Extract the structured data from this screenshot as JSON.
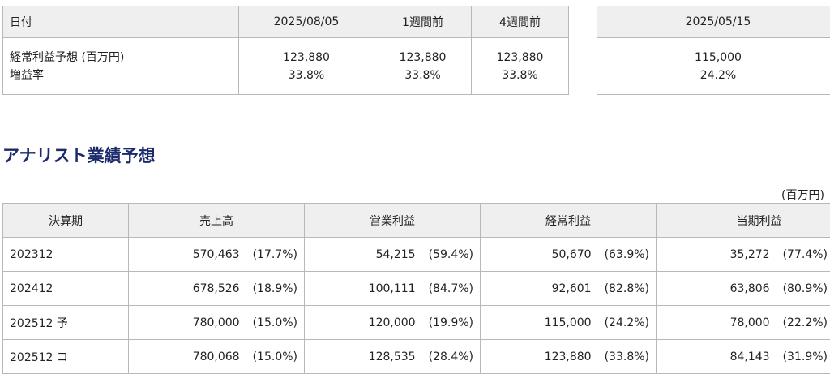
{
  "summary": {
    "headers": [
      "日付",
      "2025/08/05",
      "1週間前",
      "4週間前"
    ],
    "row_labels": [
      "経常利益予想 (百万円)",
      "増益率"
    ],
    "columns": [
      {
        "profit": "123,880",
        "growth": "33.8%"
      },
      {
        "profit": "123,880",
        "growth": "33.8%"
      },
      {
        "profit": "123,880",
        "growth": "33.8%"
      }
    ],
    "right": {
      "header": "2025/05/15",
      "profit": "115,000",
      "growth": "24.2%"
    }
  },
  "analyst": {
    "title": "アナリスト業績予想",
    "unit": "(百万円)",
    "headers": [
      "決算期",
      "売上高",
      "営業利益",
      "経常利益",
      "当期利益"
    ],
    "rows": [
      {
        "period": "202312",
        "sales": [
          "570,463",
          "(17.7%)"
        ],
        "op": [
          "54,215",
          "(59.4%)"
        ],
        "ord": [
          "50,670",
          "(63.9%)"
        ],
        "net": [
          "35,272",
          "(77.4%)"
        ]
      },
      {
        "period": "202412",
        "sales": [
          "678,526",
          "(18.9%)"
        ],
        "op": [
          "100,111",
          "(84.7%)"
        ],
        "ord": [
          "92,601",
          "(82.8%)"
        ],
        "net": [
          "63,806",
          "(80.9%)"
        ]
      },
      {
        "period": "202512 予",
        "sales": [
          "780,000",
          "(15.0%)"
        ],
        "op": [
          "120,000",
          "(19.9%)"
        ],
        "ord": [
          "115,000",
          "(24.2%)"
        ],
        "net": [
          "78,000",
          "(22.2%)"
        ]
      },
      {
        "period": "202512 コ",
        "sales": [
          "780,068",
          "(15.0%)"
        ],
        "op": [
          "128,535",
          "(28.4%)"
        ],
        "ord": [
          "123,880",
          "(33.8%)"
        ],
        "net": [
          "84,143",
          "(31.9%)"
        ]
      }
    ]
  }
}
